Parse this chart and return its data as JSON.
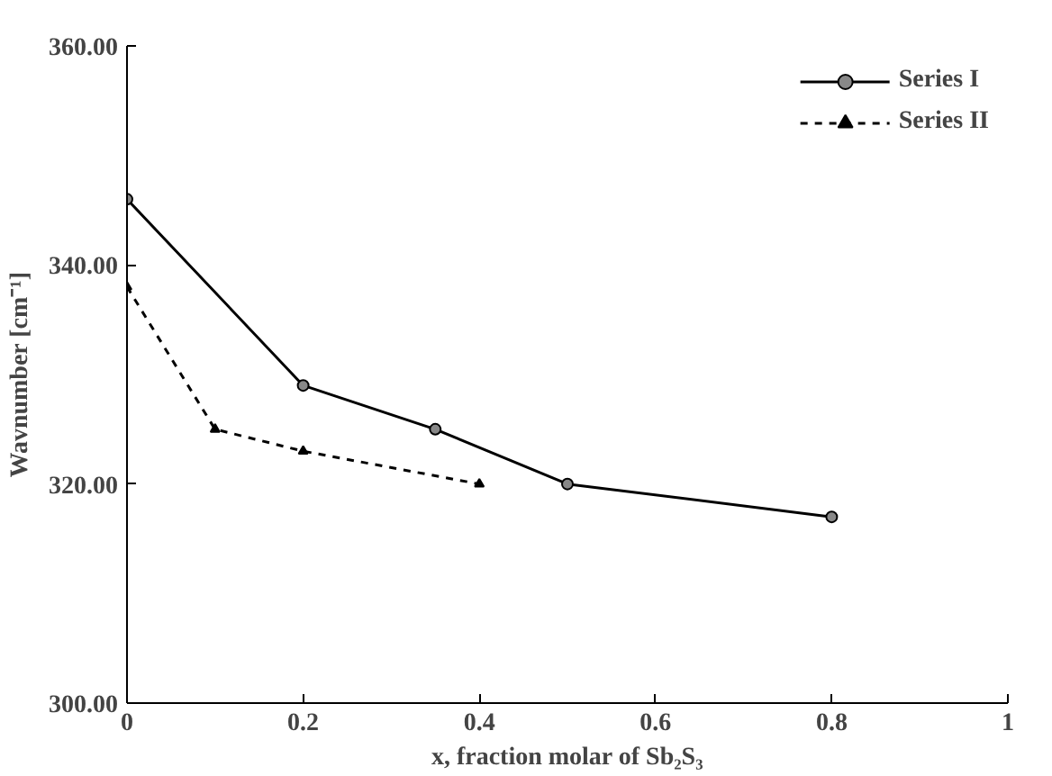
{
  "chart_data": {
    "type": "line",
    "xlabel": "x, fraction molar of Sb₂S₃",
    "ylabel": "Wavnumber [cm⁻¹]",
    "xlim": [
      0,
      1
    ],
    "ylim": [
      300,
      360
    ],
    "xticks": [
      0,
      0.2,
      0.4,
      0.6,
      0.8,
      1
    ],
    "yticks": [
      {
        "value": 300,
        "label": "300.00"
      },
      {
        "value": 320,
        "label": "320.00"
      },
      {
        "value": 340,
        "label": "340.00"
      },
      {
        "value": 360,
        "label": "360.00"
      }
    ],
    "grid": false,
    "legend": "top right",
    "series": [
      {
        "name": "Series I",
        "color": "#000000",
        "marker": "circle",
        "line_style": "solid",
        "x": [
          0,
          0.2,
          0.35,
          0.5,
          0.8
        ],
        "values": [
          346,
          329,
          325,
          320,
          317
        ]
      },
      {
        "name": "Series II",
        "color": "#000000",
        "marker": "triangle",
        "line_style": "dashed",
        "x": [
          0,
          0.1,
          0.2,
          0.4
        ],
        "values": [
          338,
          325,
          323,
          320
        ]
      }
    ]
  }
}
